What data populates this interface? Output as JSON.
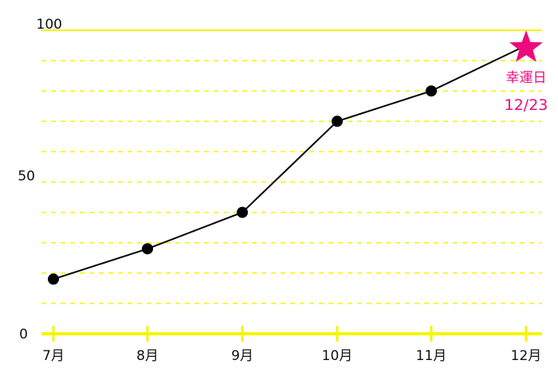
{
  "chart_data": {
    "type": "line",
    "categories": [
      "7月",
      "8月",
      "9月",
      "10月",
      "11月",
      "12月"
    ],
    "series": [
      {
        "values": [
          18,
          28,
          40,
          70,
          80,
          95
        ]
      }
    ],
    "ylim": [
      0,
      100
    ],
    "yticks": [
      "0",
      "50",
      "100"
    ],
    "grid": true,
    "grid_step": 10,
    "annotation": {
      "label": "幸運日",
      "date": "12/23",
      "category": "12月",
      "value": 95,
      "marker": "star-icon"
    },
    "colors": {
      "grid": "#f5f500",
      "line": "#000000",
      "accent": "#ee0a7e"
    }
  }
}
